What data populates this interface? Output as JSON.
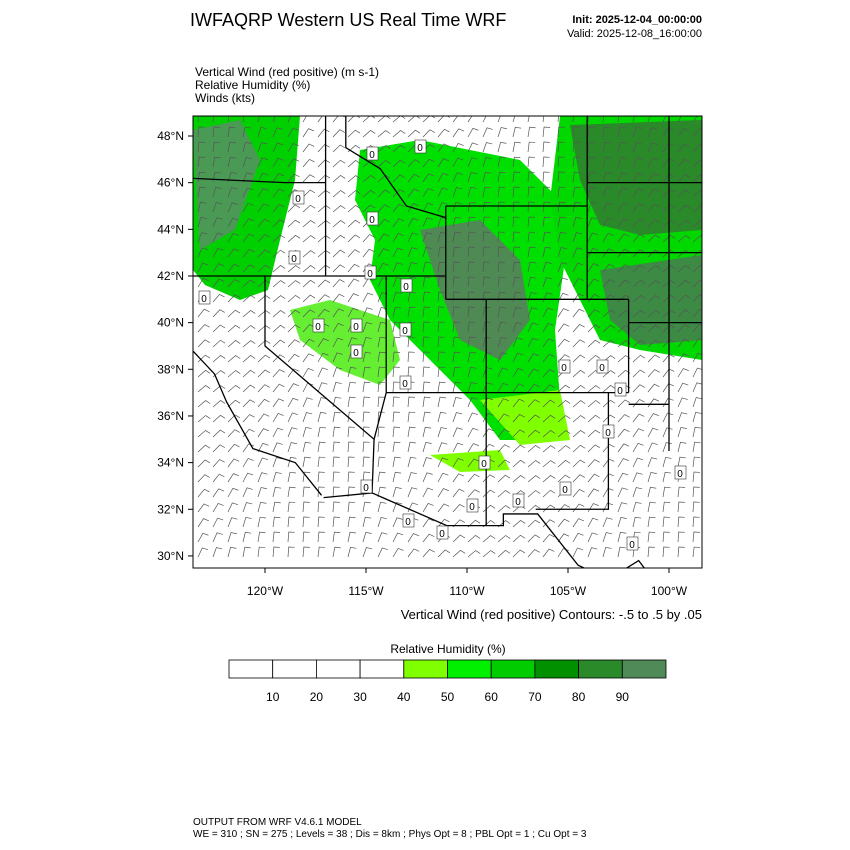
{
  "header": {
    "title": "IWFAQRP Western US Real Time WRF",
    "init": "Init: 2025-12-04_00:00:00",
    "valid": "Valid: 2025-12-08_16:00:00"
  },
  "fields": [
    "Vertical Wind (red positive)   (m s-1)",
    "Relative Humidity   (%)",
    "Winds   (kts)"
  ],
  "map": {
    "lat_ticks": [
      {
        "value": 48,
        "label": "48°N"
      },
      {
        "value": 46,
        "label": "46°N"
      },
      {
        "value": 44,
        "label": "44°N"
      },
      {
        "value": 42,
        "label": "42°N"
      },
      {
        "value": 40,
        "label": "40°N"
      },
      {
        "value": 38,
        "label": "38°N"
      },
      {
        "value": 36,
        "label": "36°N"
      },
      {
        "value": 34,
        "label": "34°N"
      },
      {
        "value": 32,
        "label": "32°N"
      },
      {
        "value": 30,
        "label": "30°N"
      }
    ],
    "lon_ticks": [
      {
        "value": -120,
        "label": "120°W"
      },
      {
        "value": -115,
        "label": "115°W"
      },
      {
        "value": -110,
        "label": "110°W"
      },
      {
        "value": -105,
        "label": "105°W"
      },
      {
        "value": -100,
        "label": "100°W"
      }
    ],
    "contour_labels": [
      "0",
      "0",
      "0",
      "0",
      "0",
      "0",
      "0",
      "0",
      "0",
      "0",
      "0",
      "0",
      "0",
      "0",
      "0",
      "0",
      "0",
      "0",
      "0",
      "0",
      "0",
      "0",
      "0",
      "0",
      "0",
      "0"
    ],
    "contour_caption": "Vertical Wind (red positive) Contours: -.5 to .5 by .05"
  },
  "colorbar": {
    "title": "Relative Humidity  (%)",
    "levels": [
      10,
      20,
      30,
      40,
      50,
      60,
      70,
      80,
      90
    ],
    "colors": [
      "#ffffff",
      "#ffffff",
      "#ffffff",
      "#ffffff",
      "#80ff00",
      "#00f000",
      "#00cc00",
      "#009000",
      "#2a8a2a",
      "#508a58"
    ]
  },
  "footer": [
    "OUTPUT FROM WRF V4.6.1 MODEL",
    "WE = 310 ; SN = 275 ; Levels = 38 ; Dis = 8km ; Phys Opt = 8 ; PBL Opt = 1 ; Cu Opt = 3"
  ]
}
